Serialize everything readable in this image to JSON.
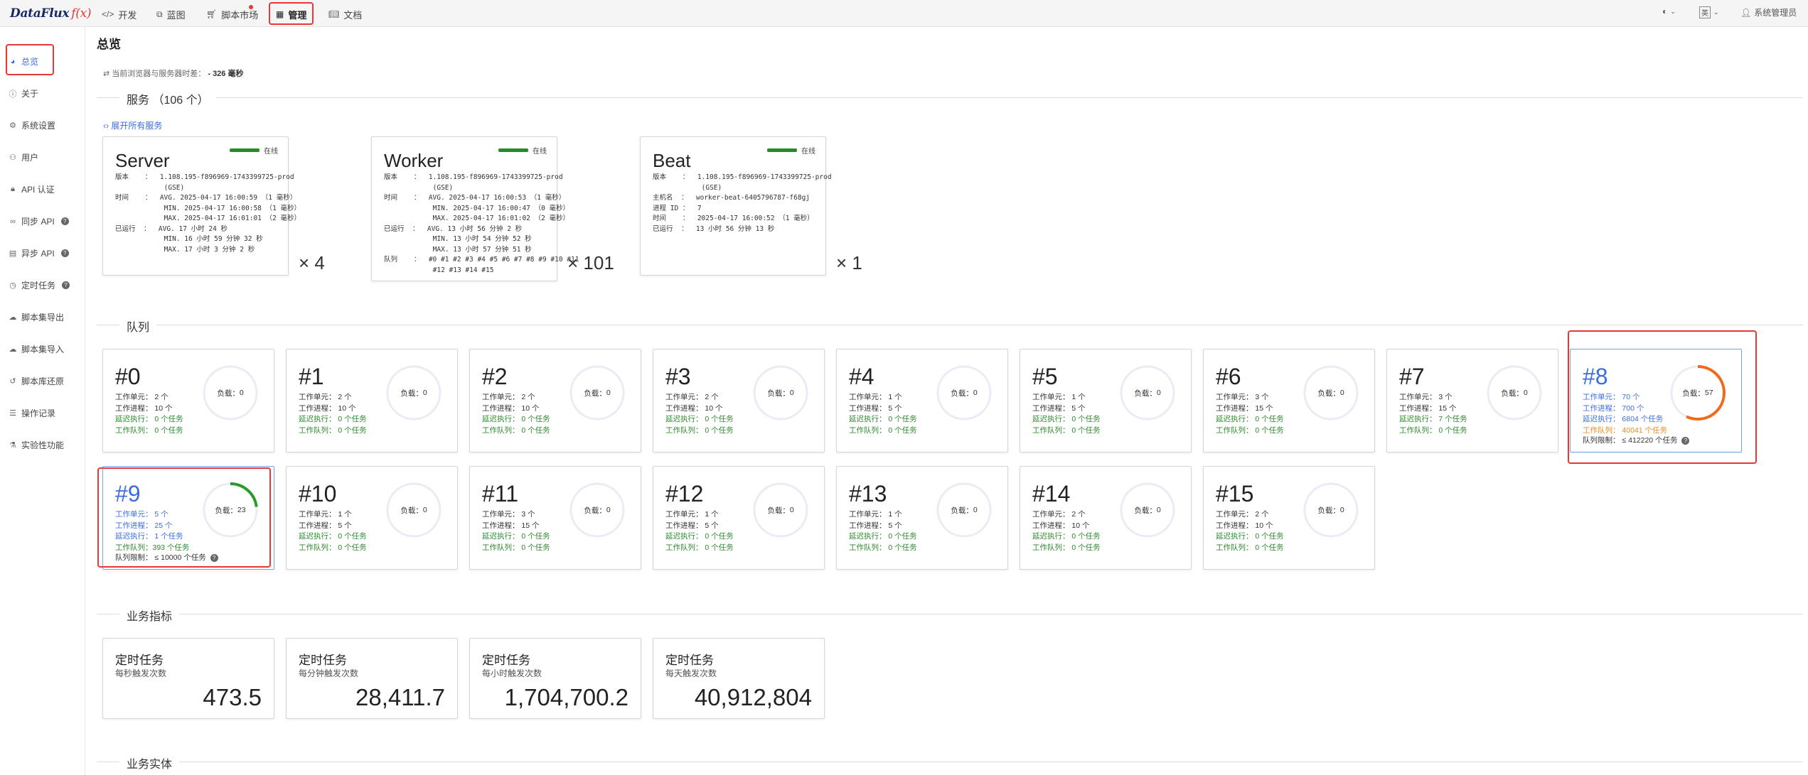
{
  "topbar": {
    "logo": "DataFlux",
    "logo_fx": "f(x)",
    "nav": [
      {
        "label": "开发",
        "icon": "code-icon"
      },
      {
        "label": "蓝图",
        "icon": "blueprint-icon"
      },
      {
        "label": "脚本市场",
        "icon": "cart-icon"
      },
      {
        "label": "管理",
        "icon": "grid-icon"
      },
      {
        "label": "文档",
        "icon": "book-icon"
      }
    ],
    "lang": "英",
    "user": "系统管理员"
  },
  "sidebar": {
    "items": [
      {
        "label": "总览",
        "icon": "dashboard-icon"
      },
      {
        "label": "关于",
        "icon": "info-icon"
      },
      {
        "label": "系统设置",
        "icon": "gear-icon"
      },
      {
        "label": "用户",
        "icon": "user-icon"
      },
      {
        "label": "API 认证",
        "icon": "lock-icon"
      },
      {
        "label": "同步 API",
        "icon": "link-icon"
      },
      {
        "label": "异步 API",
        "icon": "server-icon"
      },
      {
        "label": "定时任务",
        "icon": "clock-icon"
      },
      {
        "label": "脚本集导出",
        "icon": "export-icon"
      },
      {
        "label": "脚本集导入",
        "icon": "import-icon"
      },
      {
        "label": "脚本库还原",
        "icon": "restore-icon"
      },
      {
        "label": "操作记录",
        "icon": "list-icon"
      },
      {
        "label": "实验性功能",
        "icon": "flask-icon"
      }
    ]
  },
  "page": {
    "title": "总览",
    "latency_label": "当前浏览器与服务器时差：",
    "latency_value": "- 326 毫秒"
  },
  "services": {
    "section_title": "服务 （106 个）",
    "expand_label": "展开所有服务",
    "online_label": "在线",
    "cards": [
      {
        "name": "Server",
        "multiplier": "× 4",
        "lines": "版本    ：  1.108.195-f896969-1743399725-prod\n            (GSE)\n时间    ：  AVG. 2025-04-17 16:00:59 （1 毫秒）\n            MIN. 2025-04-17 16:00:58 （1 毫秒）\n            MAX. 2025-04-17 16:01:01 （2 毫秒）\n已运行  ：  AVG. 17 小时 24 秒\n            MIN. 16 小时 59 分钟 32 秒\n            MAX. 17 小时 3 分钟 2 秒"
      },
      {
        "name": "Worker",
        "multiplier": "× 101",
        "lines": "版本    ：  1.108.195-f896969-1743399725-prod\n            (GSE)\n时间    ：  AVG. 2025-04-17 16:00:53 （1 毫秒）\n            MIN. 2025-04-17 16:00:47 （0 毫秒）\n            MAX. 2025-04-17 16:01:02 （2 毫秒）\n已运行  ：  AVG. 13 小时 56 分钟 2 秒\n            MIN. 13 小时 54 分钟 52 秒\n            MAX. 13 小时 57 分钟 51 秒\n队列    ：  #0 #1 #2 #3 #4 #5 #6 #7 #8 #9 #10 #11\n            #12 #13 #14 #15"
      },
      {
        "name": "Beat",
        "multiplier": "× 1",
        "lines": "版本    ：  1.108.195-f896969-1743399725-prod\n            (GSE)\n主机名  ：  worker-beat-6405796787-f68gj\n进程 ID ：  7\n时间    ：  2025-04-17 16:00:52 （1 毫秒）\n已运行  ：  13 小时 56 分钟 13 秒"
      }
    ]
  },
  "queues": {
    "section_title": "队列",
    "load_label": "负载",
    "limit_label": "队列限制：",
    "labels": {
      "units": "工作单元：",
      "procs": "工作进程：",
      "delay": "延迟执行：",
      "queue": "工作队列："
    },
    "items": [
      {
        "num": "#0",
        "units": "2 个",
        "procs": "10 个",
        "delay": "0 个任务",
        "queue": "0 个任务",
        "load": 0
      },
      {
        "num": "#1",
        "units": "2 个",
        "procs": "10 个",
        "delay": "0 个任务",
        "queue": "0 个任务",
        "load": 0
      },
      {
        "num": "#2",
        "units": "2 个",
        "procs": "10 个",
        "delay": "0 个任务",
        "queue": "0 个任务",
        "load": 0
      },
      {
        "num": "#3",
        "units": "2 个",
        "procs": "10 个",
        "delay": "0 个任务",
        "queue": "0 个任务",
        "load": 0
      },
      {
        "num": "#4",
        "units": "1 个",
        "procs": "5 个",
        "delay": "0 个任务",
        "queue": "0 个任务",
        "load": 0
      },
      {
        "num": "#5",
        "units": "1 个",
        "procs": "5 个",
        "delay": "0 个任务",
        "queue": "0 个任务",
        "load": 0
      },
      {
        "num": "#6",
        "units": "3 个",
        "procs": "15 个",
        "delay": "0 个任务",
        "queue": "0 个任务",
        "load": 0
      },
      {
        "num": "#7",
        "units": "3 个",
        "procs": "15 个",
        "delay": "7 个任务",
        "queue": "0 个任务",
        "load": 0
      },
      {
        "num": "#8",
        "units": "70 个",
        "procs": "700 个",
        "delay": "6804 个任务",
        "queue": "40041 个任务",
        "load": 57,
        "limit": "≤ 412220 个任务",
        "gauge_color": "#f06a1c"
      },
      {
        "num": "#9",
        "units": "5 个",
        "procs": "25 个",
        "delay": "1 个任务",
        "queue": "393 个任务",
        "load": 23,
        "limit": "≤ 10000 个任务",
        "gauge_color": "#2a9a2a"
      },
      {
        "num": "#10",
        "units": "1 个",
        "procs": "5 个",
        "delay": "0 个任务",
        "queue": "0 个任务",
        "load": 0
      },
      {
        "num": "#11",
        "units": "3 个",
        "procs": "15 个",
        "delay": "0 个任务",
        "queue": "0 个任务",
        "load": 0
      },
      {
        "num": "#12",
        "units": "1 个",
        "procs": "5 个",
        "delay": "0 个任务",
        "queue": "0 个任务",
        "load": 0
      },
      {
        "num": "#13",
        "units": "1 个",
        "procs": "5 个",
        "delay": "0 个任务",
        "queue": "0 个任务",
        "load": 0
      },
      {
        "num": "#14",
        "units": "2 个",
        "procs": "10 个",
        "delay": "0 个任务",
        "queue": "0 个任务",
        "load": 0
      },
      {
        "num": "#15",
        "units": "2 个",
        "procs": "10 个",
        "delay": "0 个任务",
        "queue": "0 个任务",
        "load": 0
      }
    ]
  },
  "metrics": {
    "section_title": "业务指标",
    "items": [
      {
        "title": "定时任务",
        "sub": "每秒触发次数",
        "value": "473.5"
      },
      {
        "title": "定时任务",
        "sub": "每分钟触发次数",
        "value": "28,411.7"
      },
      {
        "title": "定时任务",
        "sub": "每小时触发次数",
        "value": "1,704,700.2"
      },
      {
        "title": "定时任务",
        "sub": "每天触发次数",
        "value": "40,912,804"
      }
    ]
  },
  "entities": {
    "section_title": "业务实体"
  },
  "colors": {
    "accent": "#3b6ce0",
    "online": "#2a8a2a",
    "highlight_box": "#e53935",
    "warning": "#f08a1c"
  }
}
